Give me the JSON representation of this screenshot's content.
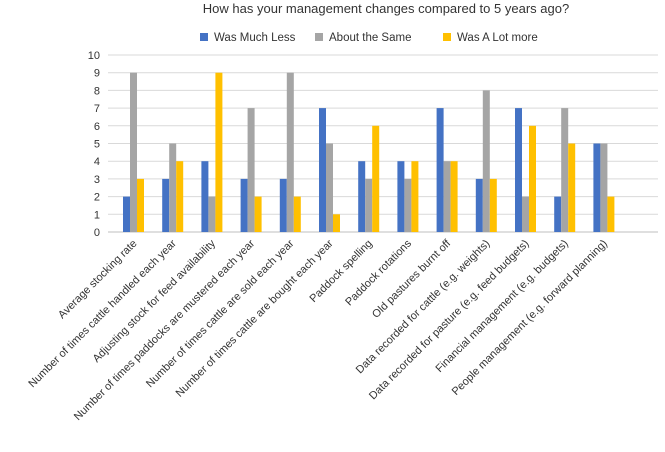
{
  "chart_data": {
    "type": "bar",
    "title": "How has your management changes compared to 5 years ago?",
    "xlabel": "",
    "ylabel": "",
    "ylim": [
      0,
      10
    ],
    "yticks": [
      0,
      1,
      2,
      3,
      4,
      5,
      6,
      7,
      8,
      9,
      10
    ],
    "grid": true,
    "legend_position": "top",
    "categories": [
      "Average stocking rate",
      "Number of times cattle handled each year",
      "Adjusting stock for feed availability",
      "Number of times paddocks are mustered each year",
      "Number of times cattle are sold each year",
      "Number of times cattle are bought each year",
      "Paddock spelling",
      "Paddock rotations",
      "Old pastures burnt off",
      "Data recorded for cattle (e.g. weights)",
      "Data recorded for pasture (e.g. feed budgets)",
      "Financial management (e.g. budgets)",
      "People management (e.g. forward planning)"
    ],
    "series": [
      {
        "name": "Was Much Less",
        "color": "#4472c4",
        "values": [
          2,
          3,
          4,
          3,
          3,
          7,
          4,
          4,
          7,
          3,
          7,
          2,
          5
        ]
      },
      {
        "name": "About the Same",
        "color": "#a5a5a5",
        "values": [
          9,
          5,
          2,
          7,
          9,
          5,
          3,
          3,
          4,
          8,
          2,
          7,
          5
        ]
      },
      {
        "name": "Was A Lot more",
        "color": "#ffc000",
        "values": [
          3,
          4,
          9,
          2,
          2,
          1,
          6,
          4,
          4,
          3,
          6,
          5,
          2
        ]
      }
    ]
  }
}
